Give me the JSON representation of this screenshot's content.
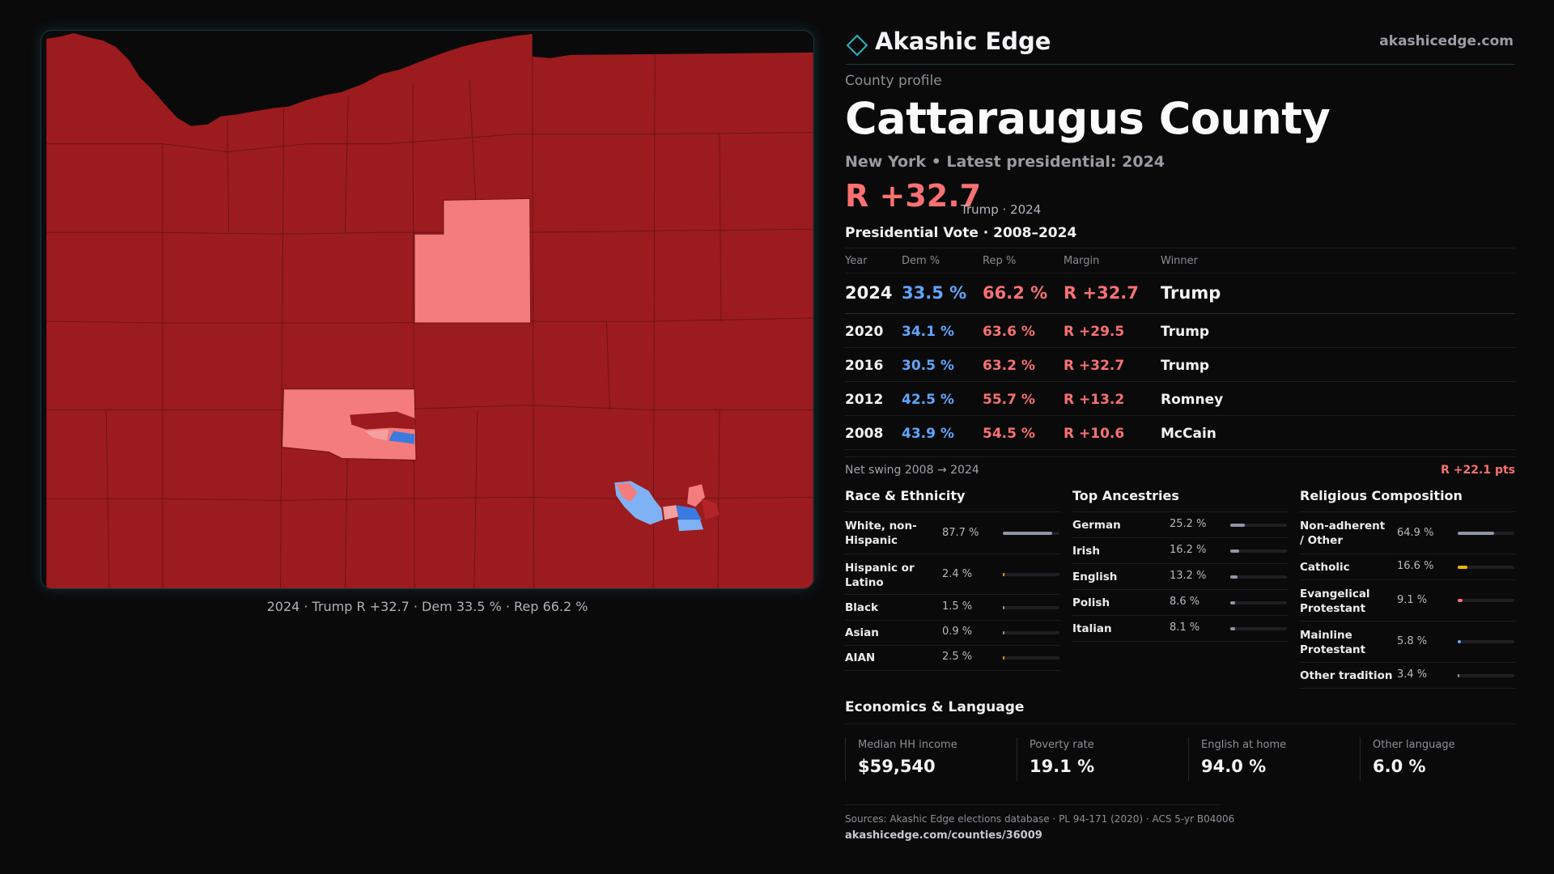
{
  "brand": {
    "name": "Akashic Edge",
    "url": "akashicedge.com",
    "logo_icon": "diamond-outline-icon"
  },
  "profile": {
    "kicker": "County profile",
    "county": "Cattaraugus County",
    "subline": "New York  • Latest presidential: 2024",
    "headline_margin": "R +32.7",
    "headline_note": "Trump · 2024"
  },
  "vote": {
    "title": "Presidential Vote · 2008–2024",
    "headers": {
      "year": "Year",
      "dem": "Dem %",
      "rep": "Rep %",
      "margin": "Margin",
      "winner": "Winner"
    },
    "rows": [
      {
        "year": "2024",
        "dem": "33.5 %",
        "rep": "66.2 %",
        "margin": "R +32.7",
        "winner": "Trump"
      },
      {
        "year": "2020",
        "dem": "34.1 %",
        "rep": "63.6 %",
        "margin": "R +29.5",
        "winner": "Trump"
      },
      {
        "year": "2016",
        "dem": "30.5 %",
        "rep": "63.2 %",
        "margin": "R +32.7",
        "winner": "Trump"
      },
      {
        "year": "2012",
        "dem": "42.5 %",
        "rep": "55.7 %",
        "margin": "R +13.2",
        "winner": "Romney"
      },
      {
        "year": "2008",
        "dem": "43.9 %",
        "rep": "54.5 %",
        "margin": "R +10.6",
        "winner": "McCain"
      }
    ],
    "swing_label": "Net swing 2008 → 2024",
    "swing_value": "R +22.1 pts"
  },
  "race": {
    "title": "Race & Ethnicity",
    "items": [
      {
        "label": "White, non-Hispanic",
        "value": "87.7 %",
        "pct": 87.7,
        "color": "#8f97a6"
      },
      {
        "label": "Hispanic or Latino",
        "value": "2.4 %",
        "pct": 2.4,
        "color": "#f59e0b"
      },
      {
        "label": "Black",
        "value": "1.5 %",
        "pct": 1.5,
        "color": "#8f97a6"
      },
      {
        "label": "Asian",
        "value": "0.9 %",
        "pct": 0.9,
        "color": "#8f97a6"
      },
      {
        "label": "AIAN",
        "value": "2.5 %",
        "pct": 2.5,
        "color": "#f59e0b"
      }
    ]
  },
  "ancestry": {
    "title": "Top Ancestries",
    "items": [
      {
        "label": "German",
        "value": "25.2 %",
        "pct": 25.2,
        "color": "#8f97a6"
      },
      {
        "label": "Irish",
        "value": "16.2 %",
        "pct": 16.2,
        "color": "#8f97a6"
      },
      {
        "label": "English",
        "value": "13.2 %",
        "pct": 13.2,
        "color": "#8f97a6"
      },
      {
        "label": "Polish",
        "value": "8.6 %",
        "pct": 8.6,
        "color": "#8f97a6"
      },
      {
        "label": "Italian",
        "value": "8.1 %",
        "pct": 8.1,
        "color": "#8f97a6"
      }
    ]
  },
  "religion": {
    "title": "Religious Composition",
    "items": [
      {
        "label": "Non-adherent / Other",
        "value": "64.9 %",
        "pct": 64.9,
        "color": "#8f97a6"
      },
      {
        "label": "Catholic",
        "value": "16.6 %",
        "pct": 16.6,
        "color": "#eab308"
      },
      {
        "label": "Evangelical Protestant",
        "value": "9.1 %",
        "pct": 9.1,
        "color": "#f87171"
      },
      {
        "label": "Mainline Protestant",
        "value": "5.8 %",
        "pct": 5.8,
        "color": "#60a5fa"
      },
      {
        "label": "Other tradition",
        "value": "3.4 %",
        "pct": 3.4,
        "color": "#8f97a6"
      }
    ]
  },
  "economics": {
    "title": "Economics & Language",
    "cards": [
      {
        "label": "Median HH income",
        "value": "$59,540"
      },
      {
        "label": "Poverty rate",
        "value": "19.1 %"
      },
      {
        "label": "English at home",
        "value": "94.0 %"
      },
      {
        "label": "Other language",
        "value": "6.0 %"
      }
    ]
  },
  "sources": {
    "text": "Sources: Akashic Edge elections database · PL 94-171 (2020) · ACS 5-yr B04006",
    "url": "akashicedge.com/counties/36009"
  },
  "map": {
    "caption": "2024 · Trump R +32.7 · Dem 33.5 % · Rep 66.2 %",
    "colors": {
      "strong_rep": "#9b1b1e",
      "lean_rep": "#f47c7c",
      "lean_dem": "#7fb2f5",
      "strong_dem": "#3b7be0",
      "borders": "#6e1416"
    }
  }
}
